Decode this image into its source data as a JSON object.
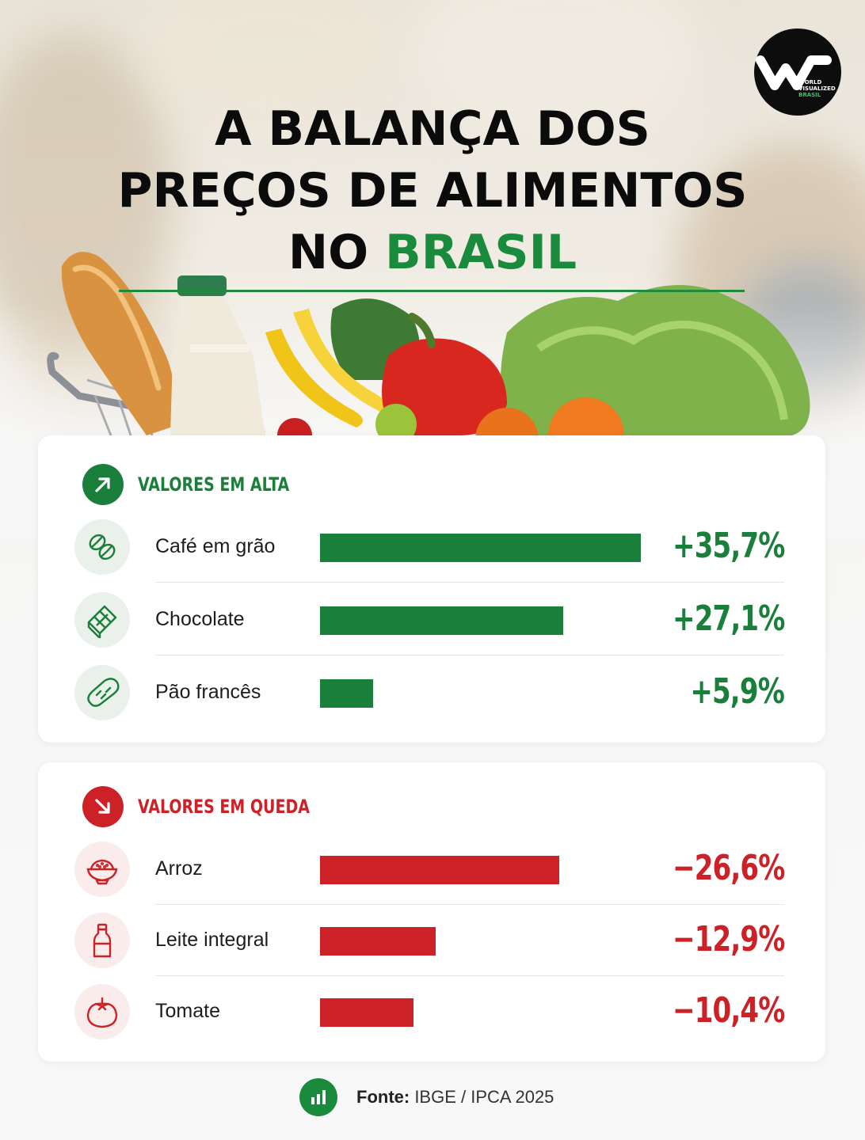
{
  "header": {
    "title_line1": "A BALANÇA DOS",
    "title_line2": "PREÇOS DE ALIMENTOS",
    "title_line3_a": "NO ",
    "title_line3_b": "BRASIL"
  },
  "logo": {
    "line1": "WORLD",
    "line2": "VISUALIZED",
    "line3": "BRASIL",
    "icon": "wv-logo"
  },
  "colors": {
    "up": "#1a7f3a",
    "down": "#cc2227",
    "title_accent": "#1a8a3c"
  },
  "sections": {
    "up": {
      "label": "VALORES EM ALTA",
      "icon": "arrow-up-right-icon"
    },
    "down": {
      "label": "VALORES EM QUEDA",
      "icon": "arrow-down-right-icon"
    }
  },
  "chart_data": [
    {
      "type": "bar",
      "title": "VALORES EM ALTA",
      "categories": [
        "Café em grão",
        "Chocolate",
        "Pão francês"
      ],
      "values": [
        35.7,
        27.1,
        5.9
      ],
      "value_labels": [
        "+35,7%",
        "+27,1%",
        "+5,9%"
      ],
      "icons": [
        "coffee-bean-icon",
        "chocolate-bar-icon",
        "bread-icon"
      ],
      "color": "#1a7f3a"
    },
    {
      "type": "bar",
      "title": "VALORES EM QUEDA",
      "categories": [
        "Arroz",
        "Leite integral",
        "Tomate"
      ],
      "values": [
        -26.6,
        -12.9,
        -10.4
      ],
      "value_labels": [
        "−26,6%",
        "−12,9%",
        "−10,4%"
      ],
      "icons": [
        "rice-bowl-icon",
        "milk-bottle-icon",
        "tomato-icon"
      ],
      "color": "#cc2227"
    }
  ],
  "footer": {
    "source_label": "Fonte:",
    "source_value": " IBGE / IPCA 2025",
    "icon": "bar-chart-icon"
  }
}
